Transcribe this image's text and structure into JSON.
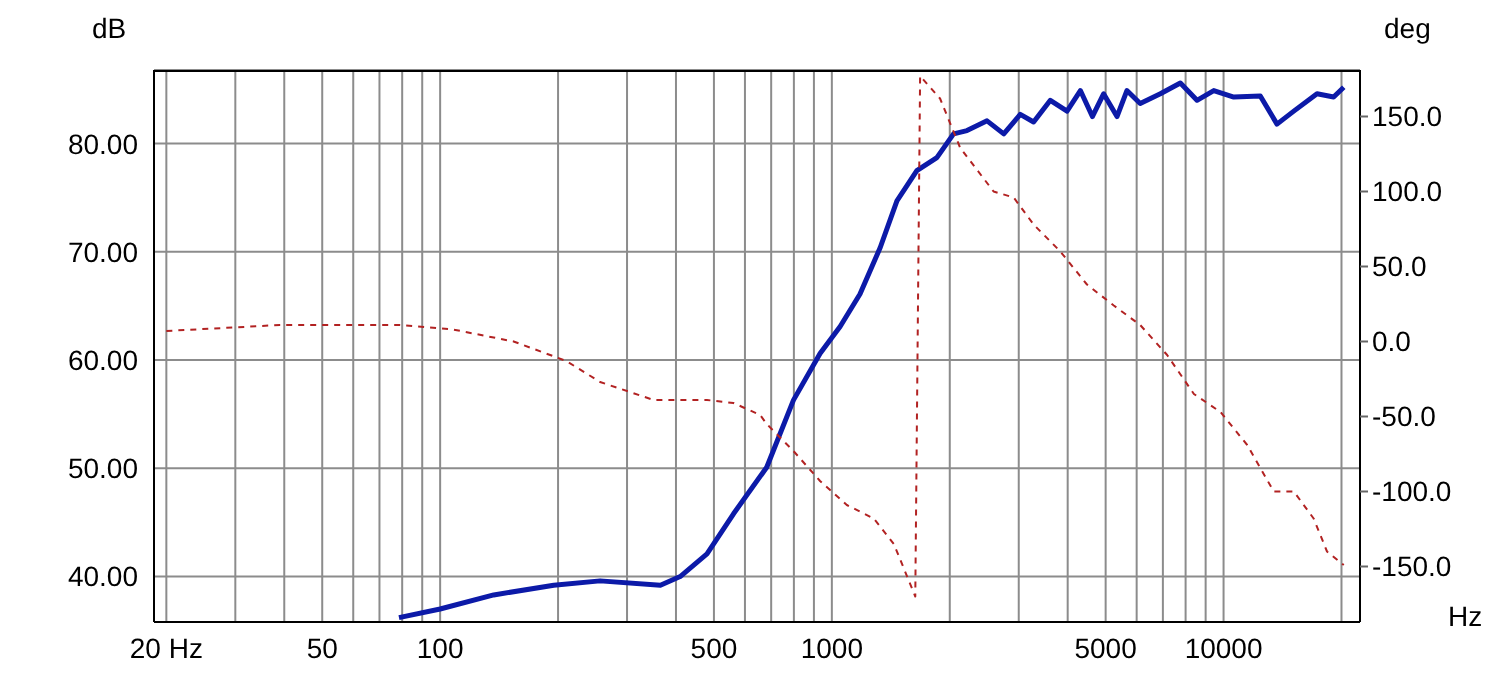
{
  "chart_data": {
    "type": "line",
    "xlabel": "Hz",
    "ylabel": "dB",
    "y2label": "deg",
    "log": "x",
    "grid": true,
    "marker": "none",
    "xlim": [
      18.6,
      22300
    ],
    "ylim": [
      35.8,
      86.8
    ],
    "y2lim": [
      -187,
      181
    ],
    "xticks": [
      {
        "value": 20,
        "label": "20 Hz"
      },
      {
        "value": 30,
        "label": null
      },
      {
        "value": 40,
        "label": null
      },
      50,
      {
        "value": 60,
        "label": null
      },
      {
        "value": 70,
        "label": null
      },
      {
        "value": 80,
        "label": null
      },
      {
        "value": 90,
        "label": null
      },
      100,
      {
        "value": 200,
        "label": null
      },
      {
        "value": 300,
        "label": null
      },
      {
        "value": 400,
        "label": null
      },
      500,
      {
        "value": 600,
        "label": null
      },
      {
        "value": 700,
        "label": null
      },
      {
        "value": 800,
        "label": null
      },
      {
        "value": 900,
        "label": null
      },
      1000,
      {
        "value": 2000,
        "label": null
      },
      {
        "value": 3000,
        "label": null
      },
      {
        "value": 4000,
        "label": null
      },
      5000,
      {
        "value": 6000,
        "label": null
      },
      {
        "value": 7000,
        "label": null
      },
      {
        "value": 8000,
        "label": null
      },
      {
        "value": 9000,
        "label": null
      },
      10000,
      {
        "value": 20000,
        "label": null
      }
    ],
    "yticks": [
      {
        "value": 40,
        "label": "40.00"
      },
      {
        "value": 50,
        "label": "50.00"
      },
      {
        "value": 60,
        "label": "60.00"
      },
      {
        "value": 70,
        "label": "70.00"
      },
      {
        "value": 80,
        "label": "80.00"
      }
    ],
    "y2ticks": [
      {
        "value": -150,
        "label": "-150.0"
      },
      {
        "value": -100,
        "label": "-100.0"
      },
      {
        "value": -50,
        "label": "-50.0"
      },
      {
        "value": 0,
        "label": "0.0"
      },
      {
        "value": 50,
        "label": "50.0"
      },
      {
        "value": 100,
        "label": "100.0"
      },
      {
        "value": 150,
        "label": "150.0"
      }
    ],
    "series": [
      {
        "color": "#0c1aa8",
        "line_style": "solid",
        "x": [
          78.5,
          100,
          137,
          195,
          256,
          365,
          410,
          480,
          561,
          682,
          798,
          933,
          1050,
          1180,
          1329,
          1466,
          1648,
          1854,
          2045,
          2213,
          2490,
          2747,
          3027,
          3274,
          3612,
          3985,
          4310,
          4625,
          4940,
          5345,
          5665,
          6126,
          6897,
          7757,
          8554,
          9440,
          10620,
          12410,
          13690,
          15110,
          17320,
          19100,
          20270
        ],
        "values": [
          36.2,
          37.0,
          38.3,
          39.2,
          39.6,
          39.2,
          40.0,
          42.1,
          45.8,
          50.1,
          56.3,
          60.6,
          63.1,
          66.1,
          70.4,
          74.7,
          77.5,
          78.7,
          80.9,
          81.2,
          82.1,
          80.9,
          82.7,
          82.0,
          84.0,
          83.0,
          84.9,
          82.5,
          84.6,
          82.5,
          84.9,
          83.7,
          84.6,
          85.6,
          84.0,
          84.9,
          84.3,
          84.4,
          81.8,
          83.0,
          84.6,
          84.3,
          85.2
        ]
      },
      {
        "color": "#b22222",
        "line_style": "dashed",
        "axis": "y2",
        "x": [
          20,
          39,
          79,
          108,
          154,
          210,
          256,
          351,
          480,
          561,
          656,
          682,
          798,
          933,
          1092,
          1279,
          1440,
          1633,
          1680,
          1889,
          2127,
          2588,
          2912,
          3274,
          3831,
          4480,
          5244,
          6126,
          7177,
          8400,
          9820,
          11490,
          13430,
          15110,
          16980,
          18370,
          20270
        ],
        "values": [
          7,
          11,
          11,
          8,
          0,
          -13,
          -27,
          -39,
          -39,
          -41,
          -49,
          -55,
          -73,
          -93,
          -109,
          -118,
          -135,
          -170,
          177,
          162,
          129,
          100,
          96,
          78,
          60,
          38,
          24,
          11,
          -9,
          -35,
          -47,
          -69,
          -100,
          -100,
          -118,
          -140,
          -149
        ]
      }
    ]
  }
}
